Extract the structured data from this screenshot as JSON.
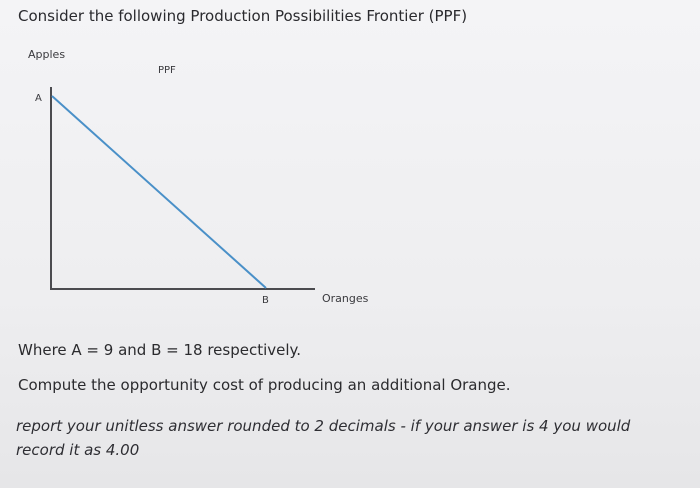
{
  "question": {
    "title": "Consider the following Production Possibilities Frontier (PPF)",
    "given": "Where A = 9 and B = 18 respectively.",
    "prompt": "Compute the opportunity cost of producing an additional Orange.",
    "instruction": "report your unitless answer rounded to 2 decimals - if your answer is 4 you would record it as 4.00"
  },
  "chart_data": {
    "type": "line",
    "ylabel": "Apples",
    "xlabel": "Oranges",
    "series": [
      {
        "name": "PPF",
        "points": [
          {
            "label": "A",
            "x": 0,
            "y": 9
          },
          {
            "label": "B",
            "x": 18,
            "y": 0
          }
        ]
      }
    ],
    "y_tick_label": "A",
    "x_tick_label": "B",
    "colors": {
      "ppf_line": "#4a90c8",
      "axes": "#4b4b4f"
    },
    "grid": false
  }
}
